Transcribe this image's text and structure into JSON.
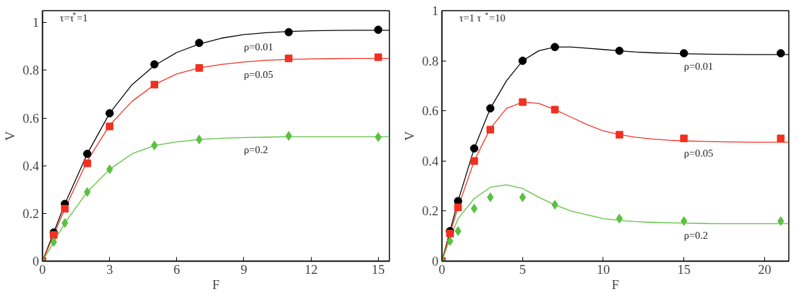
{
  "chart_data": [
    {
      "type": "line",
      "xlabel": "F",
      "ylabel": "V",
      "xlim": [
        0,
        15.5
      ],
      "ylim": [
        0,
        1.05
      ],
      "xticks": [
        0,
        3,
        6,
        9,
        12,
        15
      ],
      "yticks": [
        0,
        0.2,
        0.4,
        0.6,
        0.8,
        1
      ],
      "grid": false,
      "legend": false,
      "annotations": [
        "τ=τ$^{*}$=1"
      ],
      "series": [
        {
          "name": "ρ=0.01",
          "color": "#000000",
          "x": [
            0,
            0.5,
            1,
            2,
            3,
            4,
            5,
            6,
            7,
            8,
            9,
            10,
            11,
            12,
            13,
            14,
            15,
            15.5
          ],
          "values": [
            0,
            0.12,
            0.24,
            0.45,
            0.62,
            0.74,
            0.82,
            0.875,
            0.91,
            0.935,
            0.95,
            0.958,
            0.963,
            0.966,
            0.967,
            0.968,
            0.968,
            0.968
          ]
        },
        {
          "name": "ρ=0.05",
          "color": "#f03020",
          "x": [
            0,
            0.5,
            1,
            2,
            3,
            4,
            5,
            6,
            7,
            8,
            9,
            10,
            11,
            12,
            13,
            14,
            15,
            15.5
          ],
          "values": [
            0,
            0.11,
            0.22,
            0.42,
            0.57,
            0.67,
            0.74,
            0.785,
            0.81,
            0.825,
            0.835,
            0.842,
            0.846,
            0.848,
            0.849,
            0.85,
            0.85,
            0.85
          ]
        },
        {
          "name": "ρ=0.2",
          "color": "#5cc040",
          "x": [
            0,
            0.5,
            1,
            2,
            3,
            4,
            5,
            6,
            7,
            8,
            9,
            10,
            11,
            12,
            13,
            14,
            15,
            15.5
          ],
          "values": [
            0,
            0.08,
            0.16,
            0.29,
            0.385,
            0.45,
            0.485,
            0.5,
            0.51,
            0.515,
            0.518,
            0.52,
            0.522,
            0.522,
            0.522,
            0.522,
            0.522,
            0.522
          ]
        },
        {
          "type": "scatter",
          "marker": "circle",
          "color": "#000000",
          "x": [
            0.5,
            1,
            2,
            3,
            5,
            7,
            11,
            15
          ],
          "values": [
            0.12,
            0.24,
            0.45,
            0.62,
            0.825,
            0.915,
            0.96,
            0.97
          ]
        },
        {
          "type": "scatter",
          "marker": "square",
          "color": "#f03020",
          "x": [
            0,
            0.5,
            1,
            2,
            3,
            5,
            7,
            11,
            15
          ],
          "values": [
            0,
            0.11,
            0.22,
            0.41,
            0.565,
            0.74,
            0.81,
            0.85,
            0.855
          ]
        },
        {
          "type": "scatter",
          "marker": "diamond",
          "color": "#5cc040",
          "x": [
            0,
            0.5,
            1,
            2,
            3,
            5,
            7,
            11,
            15
          ],
          "values": [
            0,
            0.08,
            0.16,
            0.29,
            0.385,
            0.485,
            0.51,
            0.525,
            0.52
          ]
        }
      ]
    },
    {
      "type": "line",
      "xlabel": "F",
      "ylabel": "V",
      "xlim": [
        0,
        21.5
      ],
      "ylim": [
        0,
        1
      ],
      "xticks": [
        0,
        5,
        10,
        15,
        20
      ],
      "yticks": [
        0,
        0.2,
        0.4,
        0.6,
        0.8,
        1
      ],
      "grid": false,
      "legend": false,
      "annotations": [
        "τ=1  τ$^{*}$=10"
      ],
      "series": [
        {
          "name": "ρ=0.01",
          "color": "#000000",
          "x": [
            0,
            0.5,
            1,
            2,
            3,
            4,
            5,
            6,
            7,
            8,
            9,
            10,
            11,
            12,
            13,
            14,
            15,
            17,
            19,
            21,
            21.5
          ],
          "values": [
            0,
            0.12,
            0.24,
            0.45,
            0.61,
            0.72,
            0.8,
            0.84,
            0.855,
            0.855,
            0.85,
            0.845,
            0.84,
            0.835,
            0.832,
            0.83,
            0.828,
            0.826,
            0.825,
            0.825,
            0.825
          ]
        },
        {
          "name": "ρ=0.05",
          "color": "#f03020",
          "x": [
            0,
            0.5,
            1,
            2,
            3,
            4,
            5,
            6,
            7,
            8,
            9,
            10,
            11,
            12,
            13,
            14,
            15,
            17,
            19,
            21,
            21.5
          ],
          "values": [
            0,
            0.11,
            0.215,
            0.4,
            0.53,
            0.61,
            0.635,
            0.63,
            0.605,
            0.575,
            0.545,
            0.52,
            0.505,
            0.495,
            0.488,
            0.483,
            0.48,
            0.477,
            0.475,
            0.475,
            0.475
          ]
        },
        {
          "name": "ρ=0.2",
          "color": "#5cc040",
          "x": [
            0,
            0.5,
            1,
            2,
            3,
            4,
            5,
            6,
            7,
            8,
            9,
            10,
            11,
            12,
            13,
            14,
            15,
            17,
            19,
            21,
            21.5
          ],
          "values": [
            0,
            0.09,
            0.17,
            0.25,
            0.295,
            0.305,
            0.29,
            0.255,
            0.225,
            0.2,
            0.185,
            0.17,
            0.163,
            0.158,
            0.155,
            0.153,
            0.152,
            0.15,
            0.15,
            0.15,
            0.15
          ]
        },
        {
          "type": "scatter",
          "marker": "circle",
          "color": "#000000",
          "x": [
            0.5,
            1,
            2,
            3,
            5,
            7,
            11,
            15,
            21
          ],
          "values": [
            0.12,
            0.24,
            0.45,
            0.61,
            0.8,
            0.855,
            0.84,
            0.83,
            0.83
          ]
        },
        {
          "type": "scatter",
          "marker": "square",
          "color": "#f03020",
          "x": [
            0,
            0.5,
            1,
            2,
            3,
            5,
            7,
            11,
            15,
            21
          ],
          "values": [
            0,
            0.11,
            0.215,
            0.4,
            0.525,
            0.635,
            0.605,
            0.505,
            0.49,
            0.49
          ]
        },
        {
          "type": "scatter",
          "marker": "diamond",
          "color": "#5cc040",
          "x": [
            0,
            0.5,
            1,
            2,
            3,
            5,
            7,
            11,
            15,
            21
          ],
          "values": [
            0,
            0.08,
            0.12,
            0.21,
            0.255,
            0.255,
            0.225,
            0.17,
            0.16,
            0.16
          ]
        }
      ]
    }
  ]
}
